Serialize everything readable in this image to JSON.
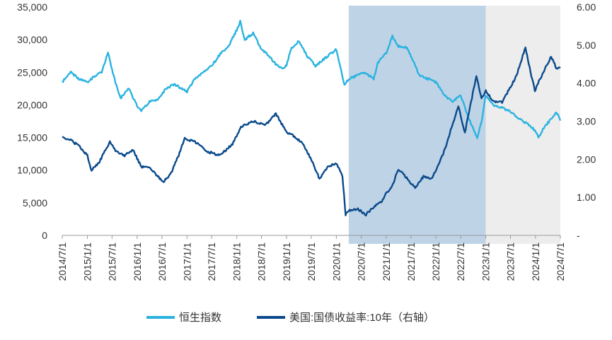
{
  "chart_data": {
    "type": "line",
    "title": "",
    "xlabel": "",
    "ylabel": "",
    "x_ticks": [
      "2014/7/1",
      "2015/1/1",
      "2015/7/1",
      "2016/1/1",
      "2016/7/1",
      "2017/1/1",
      "2017/7/1",
      "2018/1/1",
      "2018/7/1",
      "2019/1/1",
      "2019/7/1",
      "2020/1/1",
      "2020/7/1",
      "2021/1/1",
      "2021/7/1",
      "2022/1/1",
      "2022/7/1",
      "2023/1/1",
      "2023/7/1",
      "2024/1/1",
      "2024/7/1"
    ],
    "y_left": {
      "ylim": [
        0,
        35000
      ],
      "tick_labels": [
        "0",
        "5,000",
        "10,000",
        "15,000",
        "20,000",
        "25,000",
        "30,000",
        "35,000"
      ]
    },
    "y_right": {
      "ylim": [
        0,
        6
      ],
      "tick_labels": [
        "-",
        "1.00",
        "2.00",
        "3.00",
        "4.00",
        "5.00",
        "6.00"
      ]
    },
    "shaded_regions": [
      {
        "start": "2020/4/1",
        "end": "2023/1/1",
        "color": "#bfd3e6"
      },
      {
        "start": "2023/1/1",
        "end": "2024/7/1",
        "color": "#ededed"
      }
    ],
    "series": [
      {
        "name": "恒生指数",
        "axis": "left",
        "color": "#2bb3e0",
        "x": [
          "2014/7/1",
          "2014/9/1",
          "2014/11/1",
          "2015/1/1",
          "2015/3/1",
          "2015/4/15",
          "2015/6/1",
          "2015/7/1",
          "2015/8/1",
          "2015/9/1",
          "2015/11/1",
          "2016/1/1",
          "2016/2/1",
          "2016/4/1",
          "2016/6/1",
          "2016/8/1",
          "2016/10/1",
          "2017/1/1",
          "2017/3/1",
          "2017/5/1",
          "2017/7/1",
          "2017/9/1",
          "2017/11/1",
          "2018/1/1",
          "2018/1/26",
          "2018/3/1",
          "2018/5/1",
          "2018/7/1",
          "2018/8/1",
          "2018/10/1",
          "2018/12/1",
          "2019/1/1",
          "2019/2/1",
          "2019/4/1",
          "2019/6/1",
          "2019/8/1",
          "2019/10/1",
          "2019/12/1",
          "2020/1/1",
          "2020/3/1",
          "2020/4/1",
          "2020/6/1",
          "2020/8/1",
          "2020/10/1",
          "2020/11/1",
          "2021/1/1",
          "2021/2/15",
          "2021/4/1",
          "2021/6/1",
          "2021/7/1",
          "2021/9/1",
          "2021/11/1",
          "2022/1/1",
          "2022/3/1",
          "2022/5/1",
          "2022/7/1",
          "2022/9/1",
          "2022/10/31",
          "2022/12/1",
          "2023/1/1",
          "2023/3/1",
          "2023/5/1",
          "2023/7/1",
          "2023/9/1",
          "2023/11/1",
          "2024/1/1",
          "2024/1/22",
          "2024/3/1",
          "2024/5/1",
          "2024/6/1",
          "2024/7/1"
        ],
        "values": [
          23500,
          25000,
          24000,
          23500,
          24500,
          25000,
          28000,
          25500,
          23000,
          21000,
          22500,
          19800,
          19200,
          20500,
          20800,
          22500,
          23200,
          22000,
          24000,
          25000,
          26000,
          27800,
          29000,
          31500,
          32800,
          30000,
          31000,
          28500,
          28000,
          26500,
          25500,
          26000,
          28500,
          29800,
          27500,
          26000,
          27000,
          28000,
          28500,
          23000,
          24000,
          24500,
          25000,
          24000,
          26500,
          28000,
          30500,
          29000,
          28800,
          27500,
          24500,
          24000,
          23500,
          21500,
          20500,
          21500,
          17800,
          15000,
          17500,
          21500,
          20000,
          19500,
          19000,
          17800,
          17200,
          16000,
          15000,
          16500,
          18000,
          19000,
          17600
        ]
      },
      {
        "name": "美国:国债收益率:10年（右轴）",
        "axis": "right",
        "color": "#0a4a8c",
        "x": [
          "2014/7/1",
          "2014/9/1",
          "2014/11/1",
          "2015/1/1",
          "2015/2/1",
          "2015/4/1",
          "2015/6/15",
          "2015/8/1",
          "2015/10/1",
          "2015/12/1",
          "2016/2/1",
          "2016/4/1",
          "2016/7/8",
          "2016/9/1",
          "2016/11/1",
          "2016/12/15",
          "2017/3/1",
          "2017/6/1",
          "2017/9/1",
          "2017/12/1",
          "2018/2/1",
          "2018/5/1",
          "2018/8/1",
          "2018/10/15",
          "2018/12/1",
          "2019/1/1",
          "2019/3/1",
          "2019/5/1",
          "2019/7/1",
          "2019/8/30",
          "2019/11/1",
          "2020/1/1",
          "2020/2/15",
          "2020/3/9",
          "2020/4/1",
          "2020/6/1",
          "2020/8/5",
          "2020/10/1",
          "2020/12/1",
          "2021/1/1",
          "2021/2/15",
          "2021/3/31",
          "2021/6/1",
          "2021/8/1",
          "2021/10/1",
          "2021/12/1",
          "2022/1/1",
          "2022/3/1",
          "2022/5/1",
          "2022/6/14",
          "2022/8/1",
          "2022/10/24",
          "2022/12/1",
          "2023/1/1",
          "2023/3/1",
          "2023/5/1",
          "2023/7/1",
          "2023/8/15",
          "2023/10/19",
          "2023/12/1",
          "2023/12/27",
          "2024/2/1",
          "2024/4/25",
          "2024/6/1",
          "2024/7/1"
        ],
        "values": [
          2.6,
          2.5,
          2.35,
          2.1,
          1.7,
          1.95,
          2.45,
          2.2,
          2.1,
          2.25,
          1.8,
          1.8,
          1.4,
          1.6,
          2.1,
          2.55,
          2.45,
          2.2,
          2.1,
          2.4,
          2.85,
          3.0,
          2.9,
          3.2,
          2.9,
          2.7,
          2.6,
          2.4,
          2.0,
          1.5,
          1.8,
          1.9,
          1.55,
          0.55,
          0.65,
          0.7,
          0.55,
          0.75,
          0.9,
          1.1,
          1.3,
          1.75,
          1.5,
          1.25,
          1.55,
          1.5,
          1.7,
          2.2,
          2.9,
          3.4,
          2.7,
          4.2,
          3.6,
          3.8,
          3.5,
          3.5,
          3.9,
          4.2,
          4.95,
          4.2,
          3.8,
          4.1,
          4.7,
          4.4,
          4.4
        ]
      }
    ],
    "legend_position": "bottom-center"
  }
}
